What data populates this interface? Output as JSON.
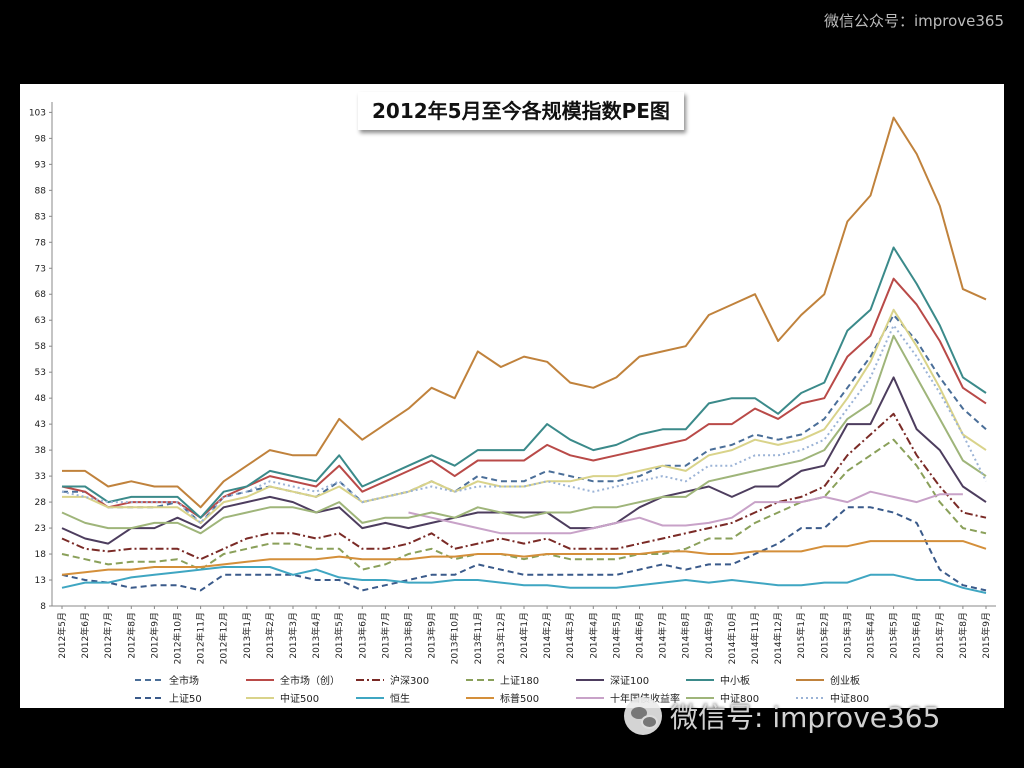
{
  "watermark_top": "微信公众号：improve365",
  "watermark_bottom": "微信号: improve365",
  "chart_data": {
    "type": "line",
    "title": "2012年5月至今各规模指数PE图",
    "ylim": [
      8,
      105
    ],
    "y_ticks": [
      8,
      13,
      18,
      23,
      28,
      33,
      38,
      43,
      48,
      53,
      58,
      63,
      68,
      73,
      78,
      83,
      88,
      93,
      98,
      103
    ],
    "legend_position": "bottom",
    "grid": false,
    "categories": [
      "2012年5月",
      "2012年6月",
      "2012年7月",
      "2012年8月",
      "2012年9月",
      "2012年10月",
      "2012年11月",
      "2012年12月",
      "2013年1月",
      "2013年2月",
      "2013年3月",
      "2013年4月",
      "2013年5月",
      "2013年6月",
      "2013年7月",
      "2013年8月",
      "2013年9月",
      "2013年10月",
      "2013年11月",
      "2013年12月",
      "2014年1月",
      "2014年2月",
      "2014年3月",
      "2014年4月",
      "2014年5月",
      "2014年6月",
      "2014年7月",
      "2014年8月",
      "2014年9月",
      "2014年10月",
      "2014年11月",
      "2014年12月",
      "2015年1月",
      "2015年2月",
      "2015年3月",
      "2015年4月",
      "2015年5月",
      "2015年6月",
      "2015年7月",
      "2015年8月",
      "2015年9月"
    ],
    "series": [
      {
        "name": "全市场",
        "color": "#4a6e98",
        "dash": "6,4",
        "values": [
          30,
          30,
          27,
          27,
          27,
          28,
          24,
          29,
          30,
          31,
          30,
          29,
          32,
          28,
          29,
          30,
          32,
          30,
          33,
          32,
          32,
          34,
          33,
          32,
          32,
          33,
          35,
          35,
          38,
          39,
          41,
          40,
          41,
          44,
          50,
          56,
          64,
          59,
          52,
          46,
          42
        ]
      },
      {
        "name": "全市场（创）",
        "color": "#b94a48",
        "dash": "",
        "values": [
          31,
          30,
          27,
          28,
          28,
          28,
          25,
          29,
          31,
          33,
          32,
          31,
          35,
          30,
          32,
          34,
          36,
          33,
          36,
          36,
          36,
          39,
          37,
          36,
          37,
          38,
          39,
          40,
          43,
          43,
          46,
          44,
          47,
          48,
          56,
          60,
          71,
          66,
          59,
          50,
          47
        ]
      },
      {
        "name": "沪深300",
        "color": "#7a2a26",
        "dash": "8,3,2,3",
        "values": [
          21,
          19,
          18.5,
          19,
          19,
          19,
          17,
          19,
          21,
          22,
          22,
          21,
          22,
          19,
          19,
          20,
          22,
          19,
          20,
          21,
          20,
          21,
          19,
          19,
          19,
          20,
          21,
          22,
          23,
          24,
          26,
          28,
          29,
          31,
          37,
          41,
          45,
          37,
          31,
          26,
          25
        ]
      },
      {
        "name": "上证180",
        "color": "#8aa05a",
        "dash": "7,4",
        "values": [
          18,
          17,
          16,
          16.5,
          16.5,
          17,
          15,
          18,
          19,
          20,
          20,
          19,
          19,
          15,
          16,
          18,
          19,
          17,
          18,
          18,
          17,
          18,
          17,
          17,
          17,
          18,
          18,
          19,
          21,
          21,
          24,
          26,
          28,
          29,
          34,
          37,
          40,
          35,
          28,
          23,
          22
        ]
      },
      {
        "name": "深证100",
        "color": "#4d3d5e",
        "dash": "",
        "values": [
          23,
          21,
          20,
          23,
          23,
          25,
          23,
          27,
          28,
          29,
          28,
          26,
          27,
          23,
          24,
          23,
          24,
          25,
          26,
          26,
          26,
          26,
          23,
          23,
          24,
          27,
          29,
          30,
          31,
          29,
          31,
          31,
          34,
          35,
          43,
          43,
          52,
          42,
          38,
          31,
          28
        ]
      },
      {
        "name": "中小板",
        "color": "#3b8a8a",
        "dash": "",
        "values": [
          31,
          31,
          28,
          29,
          29,
          29,
          25,
          30,
          31,
          34,
          33,
          32,
          37,
          31,
          33,
          35,
          37,
          35,
          38,
          38,
          38,
          43,
          40,
          38,
          39,
          41,
          42,
          42,
          47,
          48,
          48,
          45,
          49,
          51,
          61,
          65,
          77,
          70,
          62,
          52,
          49
        ]
      },
      {
        "name": "创业板",
        "color": "#c0823c",
        "dash": "",
        "values": [
          34,
          34,
          31,
          32,
          31,
          31,
          27,
          32,
          35,
          38,
          37,
          37,
          44,
          40,
          43,
          46,
          50,
          48,
          57,
          54,
          56,
          55,
          51,
          50,
          52,
          56,
          57,
          58,
          64,
          66,
          68,
          59,
          64,
          68,
          82,
          87,
          102,
          95,
          85,
          69,
          67
        ]
      },
      {
        "name": "上证50",
        "color": "#3a5a8a",
        "dash": "6,4",
        "values": [
          14,
          13,
          12.5,
          11.5,
          12,
          12,
          11,
          14,
          14,
          14,
          14,
          13,
          13,
          11,
          12,
          13,
          14,
          14,
          16,
          15,
          14,
          14,
          14,
          14,
          14,
          15,
          16,
          15,
          16,
          16,
          18,
          20,
          23,
          23,
          27,
          27,
          26,
          24,
          15,
          12,
          11
        ]
      },
      {
        "name": "中证500",
        "color": "#d9d38a",
        "dash": "",
        "values": [
          29,
          29,
          27,
          27,
          27,
          27,
          24,
          28,
          29,
          31,
          30,
          29,
          31,
          28,
          29,
          30,
          32,
          30,
          32,
          31,
          31,
          32,
          32,
          33,
          33,
          34,
          35,
          34,
          37,
          38,
          40,
          39,
          40,
          42,
          48,
          55,
          65,
          58,
          50,
          41,
          38
        ]
      },
      {
        "name": "恒生",
        "color": "#3fa6c2",
        "dash": "",
        "values": [
          11.5,
          12.5,
          12.5,
          13.5,
          14,
          14.5,
          15,
          15.5,
          15.5,
          15.5,
          14,
          15,
          13.5,
          13,
          13,
          12.5,
          12.5,
          13,
          13,
          12.5,
          12,
          12,
          11.5,
          11.5,
          11.5,
          12,
          12.5,
          13,
          12.5,
          13,
          12.5,
          12,
          12,
          12.5,
          12.5,
          14,
          14,
          13,
          13,
          11.5,
          10.5
        ]
      },
      {
        "name": "标普500",
        "color": "#d48f3a",
        "dash": "",
        "values": [
          14,
          14.5,
          15,
          15,
          15.5,
          15.5,
          15.5,
          16,
          16.5,
          17,
          17,
          17,
          17.5,
          17,
          17,
          17,
          17.5,
          17.5,
          18,
          18,
          17.5,
          18,
          18,
          18,
          18,
          18,
          18.5,
          18.5,
          18,
          18,
          18.5,
          18.5,
          18.5,
          19.5,
          19.5,
          20.5,
          20.5,
          20.5,
          20.5,
          20.5,
          19
        ]
      },
      {
        "name": "十年国债收益率",
        "color": "#c8a2c8",
        "dash": "",
        "values": [
          null,
          null,
          null,
          null,
          null,
          null,
          null,
          null,
          null,
          null,
          null,
          null,
          null,
          null,
          null,
          26,
          25,
          24,
          23,
          22,
          22,
          22,
          22,
          23,
          24,
          25,
          23.5,
          23.5,
          24,
          25,
          28,
          28,
          28,
          29,
          28,
          30,
          29,
          28,
          29.5,
          29.5,
          null
        ]
      },
      {
        "name": "中证800",
        "color": "#9fb57a",
        "dash": "",
        "values": [
          26,
          24,
          23,
          23,
          24,
          24,
          22,
          25,
          26,
          27,
          27,
          26,
          28,
          24,
          25,
          25,
          26,
          25,
          27,
          26,
          25,
          26,
          26,
          27,
          27,
          28,
          29,
          29,
          32,
          33,
          34,
          35,
          36,
          38,
          44,
          47,
          60,
          52,
          44,
          36,
          33
        ]
      },
      {
        "name": "中证800",
        "color": "#9bb3d6",
        "dash": "2,3",
        "values": [
          30,
          29,
          28,
          28,
          28,
          28,
          24,
          29,
          30,
          32,
          31,
          30,
          32,
          28,
          29,
          30,
          31,
          30,
          31,
          31,
          31,
          32,
          31,
          30,
          31,
          32,
          33,
          32,
          35,
          35,
          37,
          37,
          38,
          40,
          46,
          52,
          62,
          56,
          49,
          41,
          32
        ]
      }
    ]
  }
}
